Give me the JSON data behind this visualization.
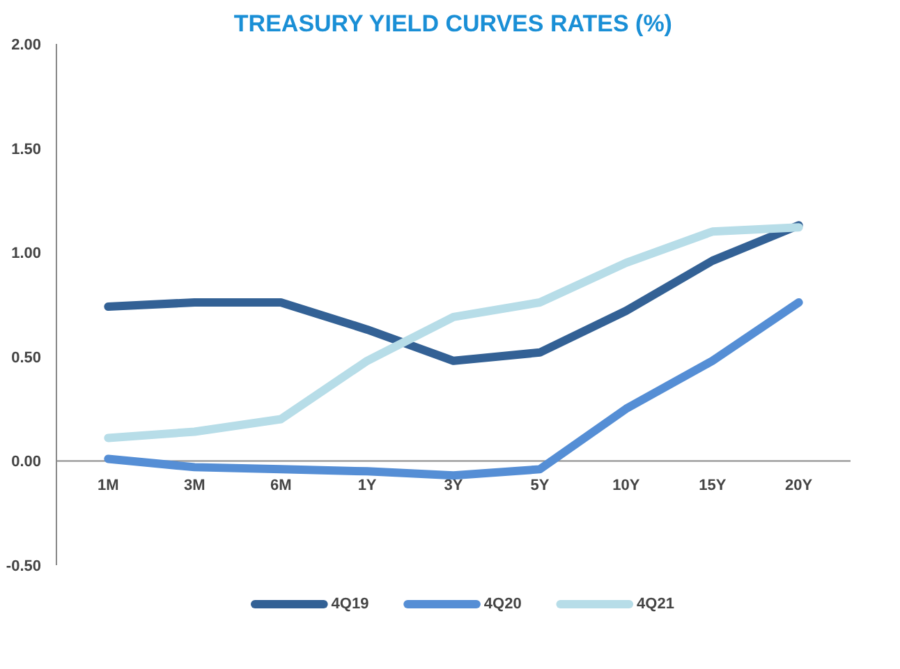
{
  "chart_data": {
    "type": "line",
    "title": "TREASURY YIELD CURVES RATES (%)",
    "categories": [
      "1M",
      "3M",
      "6M",
      "1Y",
      "3Y",
      "5Y",
      "10Y",
      "15Y",
      "20Y"
    ],
    "series": [
      {
        "name": "4Q19",
        "color": "#336195",
        "values": [
          0.74,
          0.76,
          0.76,
          0.63,
          0.48,
          0.52,
          0.72,
          0.96,
          1.13
        ]
      },
      {
        "name": "4Q20",
        "color": "#558ed5",
        "values": [
          0.01,
          -0.03,
          -0.04,
          -0.05,
          -0.07,
          -0.04,
          0.25,
          0.48,
          0.76
        ]
      },
      {
        "name": "4Q21",
        "color": "#b7dde8",
        "values": [
          0.11,
          0.14,
          0.2,
          0.48,
          0.69,
          0.76,
          0.95,
          1.1,
          1.12
        ]
      }
    ],
    "ylim": [
      -0.5,
      2.0
    ],
    "yticks": [
      {
        "value": -0.5,
        "label": "-0.50"
      },
      {
        "value": 0,
        "label": "0.00"
      },
      {
        "value": 0.5,
        "label": "0.50"
      },
      {
        "value": 1.0,
        "label": "1.00"
      },
      {
        "value": 1.5,
        "label": "1.50"
      },
      {
        "value": 2.0,
        "label": "2.00"
      }
    ],
    "grid": false,
    "legend": "bottom",
    "marker": "none",
    "line_style": "solid"
  }
}
